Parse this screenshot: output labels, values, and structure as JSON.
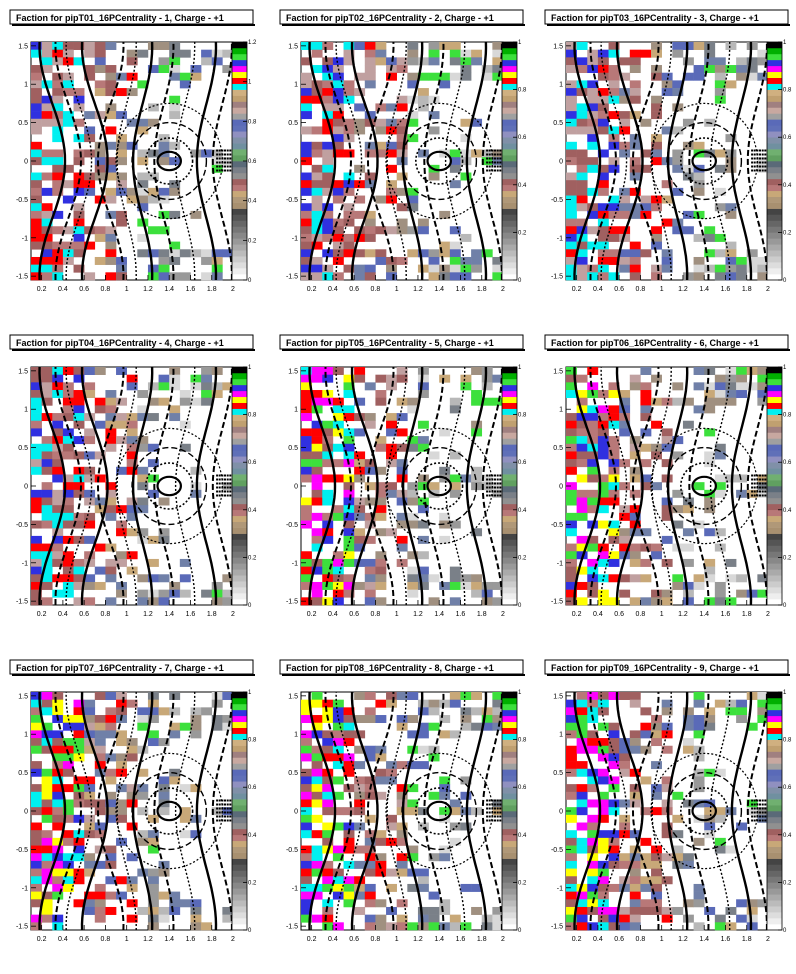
{
  "chart_data": [
    {
      "type": "heatmap",
      "title": "Faction for pipT01_16PCentrality - 1, Charge - +1",
      "x_ticks": [
        "0.2",
        "0.4",
        "0.6",
        "0.8",
        "1",
        "1.2",
        "1.4",
        "1.6",
        "1.8",
        "2"
      ],
      "y_ticks": [
        "-1.5",
        "-1",
        "-0.5",
        "0",
        "0.5",
        "1",
        "1.5"
      ],
      "z_ticks": [
        "0",
        "0.2",
        "0.4",
        "0.6",
        "0.8",
        "1",
        "1.2"
      ],
      "xlim": [
        0.1,
        2.0
      ],
      "ylim": [
        -1.55,
        1.55
      ],
      "zlim": [
        0,
        1.2
      ],
      "grid": false,
      "legend": "color scale right"
    },
    {
      "type": "heatmap",
      "title": "Faction for pipT02_16PCentrality - 2, Charge - +1",
      "x_ticks": [
        "0.2",
        "0.4",
        "0.6",
        "0.8",
        "1",
        "1.2",
        "1.4",
        "1.6",
        "1.8",
        "2"
      ],
      "y_ticks": [
        "-1.5",
        "-1",
        "-0.5",
        "0",
        "0.5",
        "1",
        "1.5"
      ],
      "z_ticks": [
        "0",
        "0.2",
        "0.4",
        "0.6",
        "0.8",
        "1"
      ],
      "xlim": [
        0.1,
        2.0
      ],
      "ylim": [
        -1.55,
        1.55
      ],
      "zlim": [
        0,
        1
      ],
      "grid": false,
      "legend": "color scale right"
    },
    {
      "type": "heatmap",
      "title": "Faction for pipT03_16PCentrality - 3, Charge - +1",
      "x_ticks": [
        "0.2",
        "0.4",
        "0.6",
        "0.8",
        "1",
        "1.2",
        "1.4",
        "1.6",
        "1.8",
        "2"
      ],
      "y_ticks": [
        "-1.5",
        "-1",
        "-0.5",
        "0",
        "0.5",
        "1",
        "1.5"
      ],
      "z_ticks": [
        "0",
        "0.2",
        "0.4",
        "0.6",
        "0.8",
        "1"
      ],
      "xlim": [
        0.1,
        2.0
      ],
      "ylim": [
        -1.55,
        1.55
      ],
      "zlim": [
        0,
        1
      ],
      "grid": false,
      "legend": "color scale right"
    },
    {
      "type": "heatmap",
      "title": "Faction for pipT04_16PCentrality - 4, Charge - +1",
      "x_ticks": [
        "0.2",
        "0.4",
        "0.6",
        "0.8",
        "1",
        "1.2",
        "1.4",
        "1.6",
        "1.8",
        "2"
      ],
      "y_ticks": [
        "-1.5",
        "-1",
        "-0.5",
        "0",
        "0.5",
        "1",
        "1.5"
      ],
      "z_ticks": [
        "0",
        "0.2",
        "0.4",
        "0.6",
        "0.8",
        "1"
      ],
      "xlim": [
        0.1,
        2.0
      ],
      "ylim": [
        -1.55,
        1.55
      ],
      "zlim": [
        0,
        1
      ],
      "grid": false,
      "legend": "color scale right"
    },
    {
      "type": "heatmap",
      "title": "Faction for pipT05_16PCentrality - 5, Charge - +1",
      "x_ticks": [
        "0.2",
        "0.4",
        "0.6",
        "0.8",
        "1",
        "1.2",
        "1.4",
        "1.6",
        "1.8",
        "2"
      ],
      "y_ticks": [
        "-1.5",
        "-1",
        "-0.5",
        "0",
        "0.5",
        "1",
        "1.5"
      ],
      "z_ticks": [
        "0",
        "0.2",
        "0.4",
        "0.6",
        "0.8",
        "1"
      ],
      "xlim": [
        0.1,
        2.0
      ],
      "ylim": [
        -1.55,
        1.55
      ],
      "zlim": [
        0,
        1
      ],
      "grid": false,
      "legend": "color scale right"
    },
    {
      "type": "heatmap",
      "title": "Faction for pipT06_16PCentrality - 6, Charge - +1",
      "x_ticks": [
        "0.2",
        "0.4",
        "0.6",
        "0.8",
        "1",
        "1.2",
        "1.4",
        "1.6",
        "1.8",
        "2"
      ],
      "y_ticks": [
        "-1.5",
        "-1",
        "-0.5",
        "0",
        "0.5",
        "1",
        "1.5"
      ],
      "z_ticks": [
        "0",
        "0.2",
        "0.4",
        "0.6",
        "0.8",
        "1"
      ],
      "xlim": [
        0.1,
        2.0
      ],
      "ylim": [
        -1.55,
        1.55
      ],
      "zlim": [
        0,
        1
      ],
      "grid": false,
      "legend": "color scale right"
    },
    {
      "type": "heatmap",
      "title": "Faction for pipT07_16PCentrality - 7, Charge - +1",
      "x_ticks": [
        "0.2",
        "0.4",
        "0.6",
        "0.8",
        "1",
        "1.2",
        "1.4",
        "1.6",
        "1.8",
        "2"
      ],
      "y_ticks": [
        "-1.5",
        "-1",
        "-0.5",
        "0",
        "0.5",
        "1",
        "1.5"
      ],
      "z_ticks": [
        "0",
        "0.2",
        "0.4",
        "0.6",
        "0.8",
        "1"
      ],
      "xlim": [
        0.1,
        2.0
      ],
      "ylim": [
        -1.55,
        1.55
      ],
      "zlim": [
        0,
        1
      ],
      "grid": false,
      "legend": "color scale right"
    },
    {
      "type": "heatmap",
      "title": "Faction for pipT08_16PCentrality - 8, Charge - +1",
      "x_ticks": [
        "0.2",
        "0.4",
        "0.6",
        "0.8",
        "1",
        "1.2",
        "1.4",
        "1.6",
        "1.8",
        "2"
      ],
      "y_ticks": [
        "-1.5",
        "-1",
        "-0.5",
        "0",
        "0.5",
        "1",
        "1.5"
      ],
      "z_ticks": [
        "0",
        "0.2",
        "0.4",
        "0.6",
        "0.8",
        "1"
      ],
      "xlim": [
        0.1,
        2.0
      ],
      "ylim": [
        -1.55,
        1.55
      ],
      "zlim": [
        0,
        1
      ],
      "grid": false,
      "legend": "color scale right"
    },
    {
      "type": "heatmap",
      "title": "Faction for pipT09_16PCentrality - 9, Charge - +1",
      "x_ticks": [
        "0.2",
        "0.4",
        "0.6",
        "0.8",
        "1",
        "1.2",
        "1.4",
        "1.6",
        "1.8",
        "2"
      ],
      "y_ticks": [
        "-1.5",
        "-1",
        "-0.5",
        "0",
        "0.5",
        "1",
        "1.5"
      ],
      "z_ticks": [
        "0",
        "0.2",
        "0.4",
        "0.6",
        "0.8",
        "1"
      ],
      "xlim": [
        0.1,
        2.0
      ],
      "ylim": [
        -1.55,
        1.55
      ],
      "zlim": [
        0,
        1
      ],
      "grid": false,
      "legend": "color scale right"
    }
  ],
  "palette": [
    "#d8d8d8",
    "#b8b8b8",
    "#999999",
    "#7a8088",
    "#a09080",
    "#b87878",
    "#a06060",
    "#c8a878",
    "#c0a0a0",
    "#7080a8",
    "#5a6ab8",
    "#3030e0",
    "#3ce03c",
    "#00f0f0",
    "#ff00ff",
    "#ffff00",
    "#ff0000",
    "#404040"
  ],
  "contour_color": "#000000"
}
